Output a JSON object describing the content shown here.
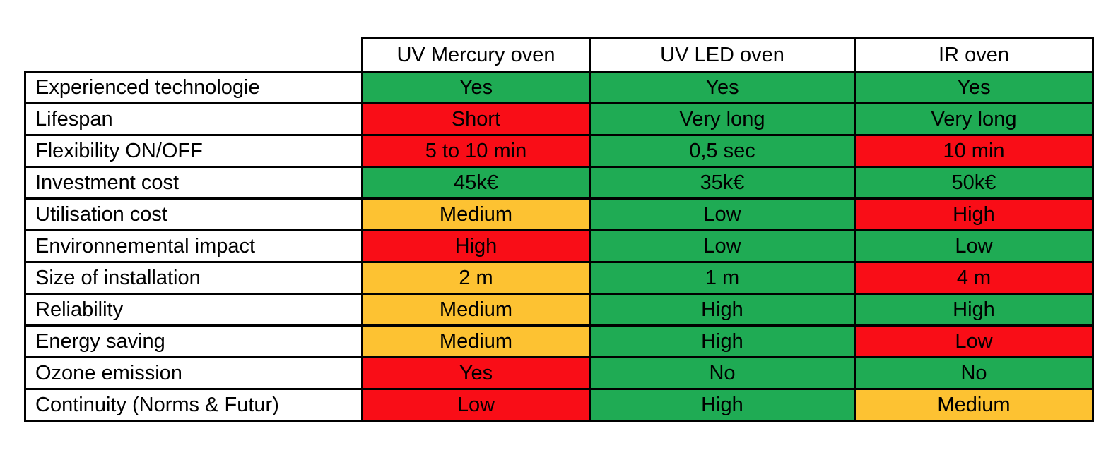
{
  "chart_data": {
    "type": "table",
    "title": "",
    "columns": [
      "UV Mercury oven",
      "UV LED oven",
      "IR oven"
    ],
    "status_colors": {
      "good": "#1FAB54",
      "medium": "#FDC232",
      "bad": "#F90D17"
    },
    "border_color": "#000000",
    "rows": [
      {
        "label": "Experienced technologie",
        "cells": [
          {
            "text": "Yes",
            "status": "good"
          },
          {
            "text": "Yes",
            "status": "good"
          },
          {
            "text": "Yes",
            "status": "good"
          }
        ]
      },
      {
        "label": "Lifespan",
        "cells": [
          {
            "text": "Short",
            "status": "bad"
          },
          {
            "text": "Very long",
            "status": "good"
          },
          {
            "text": "Very long",
            "status": "good"
          }
        ]
      },
      {
        "label": "Flexibility ON/OFF",
        "cells": [
          {
            "text": "5 to 10 min",
            "status": "bad"
          },
          {
            "text": "0,5 sec",
            "status": "good"
          },
          {
            "text": "10 min",
            "status": "bad"
          }
        ]
      },
      {
        "label": "Investment cost",
        "cells": [
          {
            "text": "45k€",
            "status": "good"
          },
          {
            "text": "35k€",
            "status": "good"
          },
          {
            "text": "50k€",
            "status": "good"
          }
        ]
      },
      {
        "label": "Utilisation cost",
        "cells": [
          {
            "text": "Medium",
            "status": "medium"
          },
          {
            "text": "Low",
            "status": "good"
          },
          {
            "text": "High",
            "status": "bad"
          }
        ]
      },
      {
        "label": "Environnemental impact",
        "cells": [
          {
            "text": "High",
            "status": "bad"
          },
          {
            "text": "Low",
            "status": "good"
          },
          {
            "text": "Low",
            "status": "good"
          }
        ]
      },
      {
        "label": "Size of installation",
        "cells": [
          {
            "text": "2 m",
            "status": "medium"
          },
          {
            "text": "1 m",
            "status": "good"
          },
          {
            "text": "4 m",
            "status": "bad"
          }
        ]
      },
      {
        "label": "Reliability",
        "cells": [
          {
            "text": "Medium",
            "status": "medium"
          },
          {
            "text": "High",
            "status": "good"
          },
          {
            "text": "High",
            "status": "good"
          }
        ]
      },
      {
        "label": "Energy saving",
        "cells": [
          {
            "text": "Medium",
            "status": "medium"
          },
          {
            "text": "High",
            "status": "good"
          },
          {
            "text": "Low",
            "status": "bad"
          }
        ]
      },
      {
        "label": "Ozone emission",
        "cells": [
          {
            "text": "Yes",
            "status": "bad"
          },
          {
            "text": "No",
            "status": "good"
          },
          {
            "text": "No",
            "status": "good"
          }
        ]
      },
      {
        "label": "Continuity (Norms & Futur)",
        "cells": [
          {
            "text": "Low",
            "status": "bad"
          },
          {
            "text": "High",
            "status": "good"
          },
          {
            "text": "Medium",
            "status": "medium"
          }
        ]
      }
    ]
  }
}
